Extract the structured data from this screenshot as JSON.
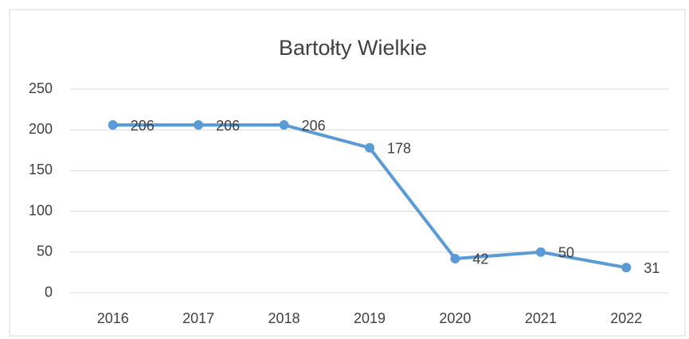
{
  "chart_data": {
    "type": "line",
    "title": "Bartołty Wielkie",
    "categories": [
      "2016",
      "2017",
      "2018",
      "2019",
      "2020",
      "2021",
      "2022"
    ],
    "series": [
      {
        "name": "Bartołty Wielkie",
        "color": "#5b9bd5",
        "values": [
          206,
          206,
          206,
          178,
          42,
          50,
          31
        ]
      }
    ],
    "ylim": [
      0,
      250
    ],
    "yticks": [
      0,
      50,
      100,
      150,
      200,
      250
    ],
    "grid": true
  }
}
